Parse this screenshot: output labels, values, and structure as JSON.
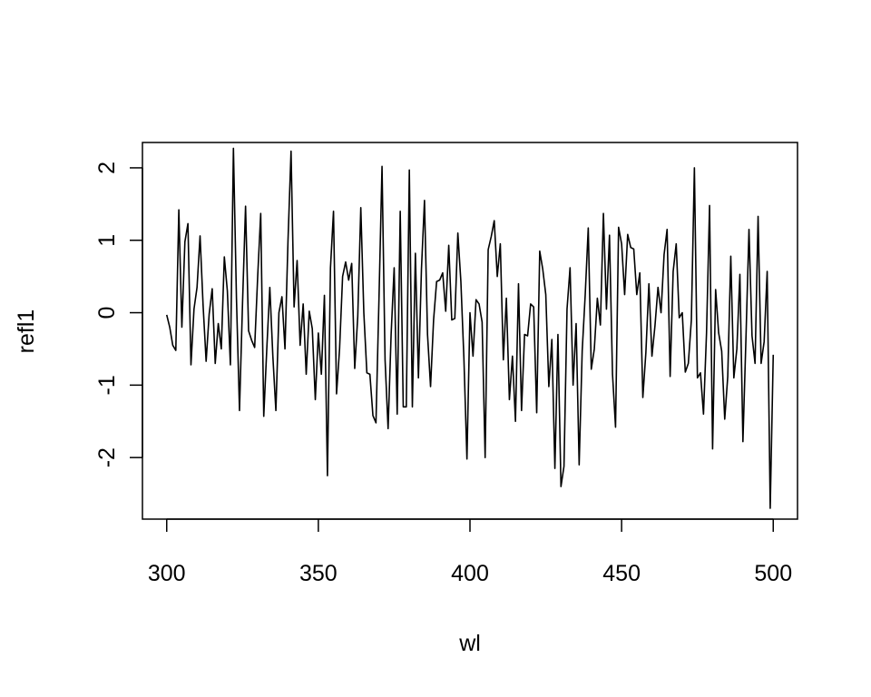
{
  "chart_data": {
    "type": "line",
    "title": "",
    "xlabel": "wl",
    "ylabel": "refl1",
    "xlim": [
      292,
      508
    ],
    "ylim": [
      -2.85,
      2.35
    ],
    "grid": false,
    "legend": "none",
    "line_color": "#000000",
    "x_ticks": [
      300,
      350,
      400,
      450,
      500
    ],
    "x_tick_labels": [
      "300",
      "350",
      "400",
      "450",
      "500"
    ],
    "y_ticks": [
      -2,
      -1,
      0,
      1,
      2
    ],
    "y_tick_labels": [
      "-2",
      "-1",
      "0",
      "1",
      "2"
    ],
    "series": [
      {
        "x": [
          300,
          301,
          302,
          303,
          304,
          305,
          306,
          307,
          308,
          309,
          310,
          311,
          312,
          313,
          314,
          315,
          316,
          317,
          318,
          319,
          320,
          321,
          322,
          323,
          324,
          325,
          326,
          327,
          328,
          329,
          330,
          331,
          332,
          333,
          334,
          335,
          336,
          337,
          338,
          339,
          340,
          341,
          342,
          343,
          344,
          345,
          346,
          347,
          348,
          349,
          350,
          351,
          352,
          353,
          354,
          355,
          356,
          357,
          358,
          359,
          360,
          361,
          362,
          363,
          364,
          365,
          366,
          367,
          368,
          369,
          370,
          371,
          372,
          373,
          374,
          375,
          376,
          377,
          378,
          379,
          380,
          381,
          382,
          383,
          384,
          385,
          386,
          387,
          388,
          389,
          390,
          391,
          392,
          393,
          394,
          395,
          396,
          397,
          398,
          399,
          400,
          401,
          402,
          403,
          404,
          405,
          406,
          407,
          408,
          409,
          410,
          411,
          412,
          413,
          414,
          415,
          416,
          417,
          418,
          419,
          420,
          421,
          422,
          423,
          424,
          425,
          426,
          427,
          428,
          429,
          430,
          431,
          432,
          433,
          434,
          435,
          436,
          437,
          438,
          439,
          440,
          441,
          442,
          443,
          444,
          445,
          446,
          447,
          448,
          449,
          450,
          451,
          452,
          453,
          454,
          455,
          456,
          457,
          458,
          459,
          460,
          461,
          462,
          463,
          464,
          465,
          466,
          467,
          468,
          469,
          470,
          471,
          472,
          473,
          474,
          475,
          476,
          477,
          478,
          479,
          480,
          481,
          482,
          483,
          484,
          485,
          486,
          487,
          488,
          489,
          490,
          491,
          492,
          493,
          494,
          495,
          496,
          497,
          498,
          499,
          500
        ],
        "y": [
          -0.03,
          -0.2,
          -0.45,
          -0.52,
          1.42,
          -0.2,
          0.98,
          1.23,
          -0.72,
          0.05,
          0.35,
          1.06,
          0.1,
          -0.67,
          -0.02,
          0.33,
          -0.7,
          -0.15,
          -0.5,
          0.77,
          0.3,
          -0.72,
          2.27,
          0.2,
          -1.35,
          0.13,
          1.47,
          -0.25,
          -0.38,
          -0.48,
          0.5,
          1.37,
          -1.43,
          -0.5,
          0.35,
          -0.6,
          -1.35,
          0.0,
          0.22,
          -0.5,
          1.0,
          2.23,
          0.08,
          0.72,
          -0.45,
          0.12,
          -0.85,
          0.02,
          -0.22,
          -1.2,
          -0.28,
          -0.85,
          0.24,
          -2.25,
          0.62,
          1.4,
          -1.12,
          -0.5,
          0.5,
          0.7,
          0.45,
          0.68,
          -0.77,
          -0.05,
          1.45,
          0.0,
          -0.83,
          -0.85,
          -1.42,
          -1.52,
          0.2,
          2.02,
          -0.65,
          -1.6,
          -0.3,
          0.62,
          -1.4,
          1.4,
          -1.3,
          -1.3,
          1.97,
          -1.3,
          0.82,
          -0.9,
          0.6,
          1.55,
          -0.3,
          -1.02,
          -0.1,
          0.43,
          0.45,
          0.55,
          0.02,
          0.93,
          -0.1,
          -0.08,
          1.1,
          0.43,
          -0.63,
          -2.02,
          0.0,
          -0.6,
          0.18,
          0.12,
          -0.13,
          -2.0,
          0.87,
          1.05,
          1.27,
          0.5,
          0.95,
          -0.65,
          0.2,
          -1.2,
          -0.6,
          -1.5,
          0.4,
          -1.35,
          -0.3,
          -0.32,
          0.12,
          0.08,
          -1.38,
          0.85,
          0.6,
          0.25,
          -1.02,
          -0.37,
          -2.15,
          -0.3,
          -2.4,
          -2.12,
          0.05,
          0.62,
          -1.0,
          -0.15,
          -2.1,
          -0.53,
          0.25,
          1.17,
          -0.78,
          -0.5,
          0.2,
          -0.17,
          1.37,
          0.05,
          1.07,
          -0.85,
          -1.58,
          1.18,
          0.95,
          0.25,
          1.08,
          0.9,
          0.88,
          0.25,
          0.55,
          -1.17,
          -0.55,
          0.4,
          -0.6,
          -0.18,
          0.35,
          0.0,
          0.8,
          1.15,
          -0.88,
          0.57,
          0.95,
          -0.07,
          0.0,
          -0.82,
          -0.7,
          -0.1,
          2.0,
          -0.9,
          -0.83,
          -1.4,
          -0.28,
          1.48,
          -1.88,
          0.32,
          -0.28,
          -0.53,
          -1.47,
          -0.88,
          0.78,
          -0.9,
          -0.5,
          0.53,
          -1.78,
          -0.35,
          1.15,
          -0.32,
          -0.7,
          1.33,
          -0.7,
          -0.4,
          0.57,
          -2.7,
          -0.58
        ]
      }
    ]
  }
}
